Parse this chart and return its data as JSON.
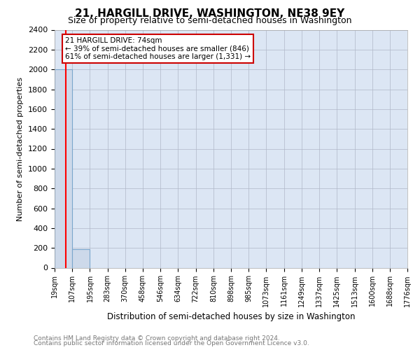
{
  "title": "21, HARGILL DRIVE, WASHINGTON, NE38 9EY",
  "subtitle": "Size of property relative to semi-detached houses in Washington",
  "xlabel": "Distribution of semi-detached houses by size in Washington",
  "ylabel": "Number of semi-detached properties",
  "footer_line1": "Contains HM Land Registry data © Crown copyright and database right 2024.",
  "footer_line2": "Contains public sector information licensed under the Open Government Licence v3.0.",
  "bar_edges": [
    19,
    107,
    195,
    283,
    370,
    458,
    546,
    634,
    722,
    810,
    898,
    985,
    1073,
    1161,
    1249,
    1337,
    1425,
    1513,
    1600,
    1688,
    1776
  ],
  "bar_heights": [
    2000,
    190,
    0,
    0,
    0,
    0,
    0,
    0,
    0,
    0,
    0,
    0,
    0,
    0,
    0,
    0,
    0,
    0,
    0,
    0
  ],
  "bar_color": "#cdd9ea",
  "bar_edgecolor": "#7aa6cc",
  "red_line_x": 74,
  "ylim": [
    0,
    2400
  ],
  "yticks": [
    0,
    200,
    400,
    600,
    800,
    1000,
    1200,
    1400,
    1600,
    1800,
    2000,
    2200,
    2400
  ],
  "xtick_labels": [
    "19sqm",
    "107sqm",
    "195sqm",
    "283sqm",
    "370sqm",
    "458sqm",
    "546sqm",
    "634sqm",
    "722sqm",
    "810sqm",
    "898sqm",
    "985sqm",
    "1073sqm",
    "1161sqm",
    "1249sqm",
    "1337sqm",
    "1425sqm",
    "1513sqm",
    "1600sqm",
    "1688sqm",
    "1776sqm"
  ],
  "annotation_title": "21 HARGILL DRIVE: 74sqm",
  "annotation_line1": "← 39% of semi-detached houses are smaller (846)",
  "annotation_line2": "61% of semi-detached houses are larger (1,331) →",
  "annotation_box_facecolor": "#ffffff",
  "annotation_box_edgecolor": "#cc0000",
  "fig_bg_color": "#ffffff",
  "plot_bg_color": "#dce6f4",
  "grid_color": "#b0b8c8",
  "title_fontsize": 11,
  "subtitle_fontsize": 9,
  "ylabel_fontsize": 8,
  "xlabel_fontsize": 8.5,
  "ytick_fontsize": 8,
  "xtick_fontsize": 7,
  "footer_fontsize": 6.5,
  "footer_color": "#777777"
}
